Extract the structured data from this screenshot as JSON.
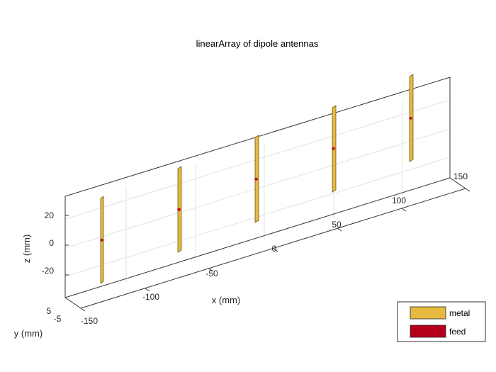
{
  "title": "linearArray of dipole antennas",
  "axes": {
    "xlabel": "x (mm)",
    "ylabel": "y (mm)",
    "zlabel": "z (mm)",
    "x_ticks": [
      "-150",
      "-100",
      "-50",
      "0",
      "50",
      "100",
      "150"
    ],
    "y_ticks": [
      "-5",
      "5"
    ],
    "z_ticks": [
      "20",
      "0",
      "-20"
    ]
  },
  "legend": {
    "items": [
      {
        "label": "metal",
        "color": "#E6B93F"
      },
      {
        "label": "feed",
        "color": "#B5001C"
      }
    ]
  },
  "colors": {
    "metal": "#E6B93F",
    "metal_edge": "#6E5A1E",
    "feed": "#B5001C",
    "grid": "#e3e3e3",
    "box": "#333333"
  },
  "elements": {
    "count": 5,
    "x_positions_mm": [
      -150,
      -75,
      0,
      75,
      150
    ]
  }
}
